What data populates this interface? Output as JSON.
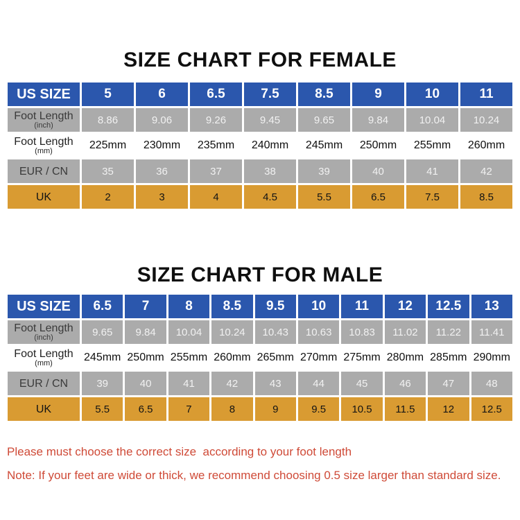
{
  "female_chart": {
    "title": "SIZE CHART FOR FEMALE",
    "header_label": "US SIZE",
    "us_sizes": [
      "5",
      "6",
      "6.5",
      "7.5",
      "8.5",
      "9",
      "10",
      "11"
    ],
    "rows": [
      {
        "label": "Foot Length",
        "sublabel": "(inch)",
        "style": "gray",
        "values": [
          "8.86",
          "9.06",
          "9.26",
          "9.45",
          "9.65",
          "9.84",
          "10.04",
          "10.24"
        ]
      },
      {
        "label": "Foot Length",
        "sublabel": "(mm)",
        "style": "white",
        "values": [
          "225mm",
          "230mm",
          "235mm",
          "240mm",
          "245mm",
          "250mm",
          "255mm",
          "260mm"
        ]
      },
      {
        "label": "EUR / CN",
        "sublabel": "",
        "style": "gray",
        "values": [
          "35",
          "36",
          "37",
          "38",
          "39",
          "40",
          "41",
          "42"
        ]
      },
      {
        "label": "UK",
        "sublabel": "",
        "style": "orange",
        "values": [
          "2",
          "3",
          "4",
          "4.5",
          "5.5",
          "6.5",
          "7.5",
          "8.5"
        ]
      }
    ]
  },
  "male_chart": {
    "title": "SIZE CHART FOR MALE",
    "header_label": "US SIZE",
    "us_sizes": [
      "6.5",
      "7",
      "8",
      "8.5",
      "9.5",
      "10",
      "11",
      "12",
      "12.5",
      "13"
    ],
    "rows": [
      {
        "label": "Foot Length",
        "sublabel": "(inch)",
        "style": "gray",
        "values": [
          "9.65",
          "9.84",
          "10.04",
          "10.24",
          "10.43",
          "10.63",
          "10.83",
          "11.02",
          "11.22",
          "11.41"
        ]
      },
      {
        "label": "Foot Length",
        "sublabel": "(mm)",
        "style": "white",
        "values": [
          "245mm",
          "250mm",
          "255mm",
          "260mm",
          "265mm",
          "270mm",
          "275mm",
          "280mm",
          "285mm",
          "290mm"
        ]
      },
      {
        "label": "EUR / CN",
        "sublabel": "",
        "style": "gray",
        "values": [
          "39",
          "40",
          "41",
          "42",
          "43",
          "44",
          "45",
          "46",
          "47",
          "48"
        ]
      },
      {
        "label": "UK",
        "sublabel": "",
        "style": "orange",
        "values": [
          "5.5",
          "6.5",
          "7",
          "8",
          "9",
          "9.5",
          "10.5",
          "11.5",
          "12",
          "12.5"
        ]
      }
    ]
  },
  "notes": [
    "Please must choose the correct size  according to your foot length",
    "Note: If your feet are wide or thick, we recommend choosing 0.5 size larger than standard size."
  ],
  "colors": {
    "header_blue": "#2b57ad",
    "row_gray": "#ababab",
    "row_orange": "#d99b32",
    "note_red": "#cf4a37",
    "title_black": "#0f0f0f"
  }
}
